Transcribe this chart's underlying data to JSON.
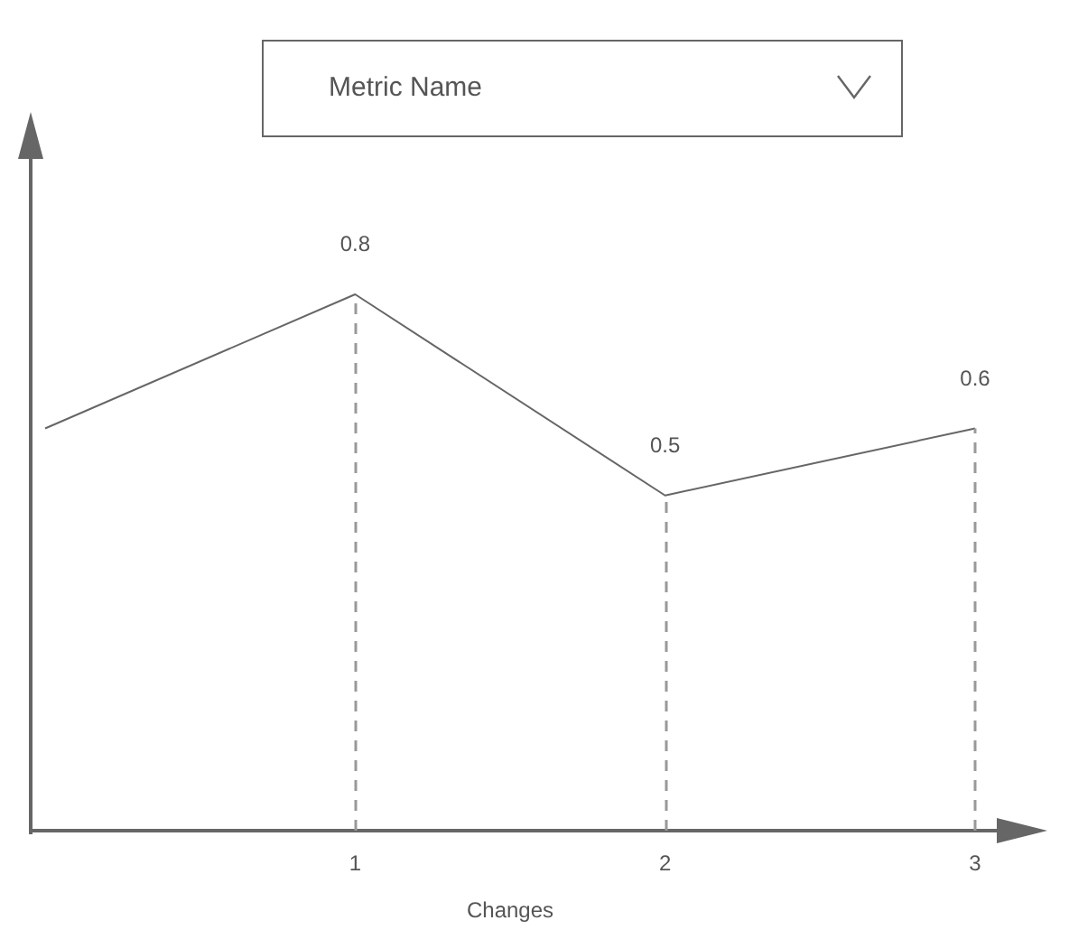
{
  "chart_data": {
    "type": "line",
    "title": "Metric Name",
    "xlabel": "Changes",
    "categories": [
      null,
      "1",
      "2",
      "3"
    ],
    "series": [
      {
        "color": "#666666",
        "values": [
          0.6,
          0.8,
          0.5,
          0.6
        ],
        "value_labels": [
          null,
          "0.8",
          "0.5",
          "0.6"
        ]
      }
    ],
    "marker": "none",
    "line_style": "solid",
    "grid": "x",
    "tick_labels": "x"
  }
}
